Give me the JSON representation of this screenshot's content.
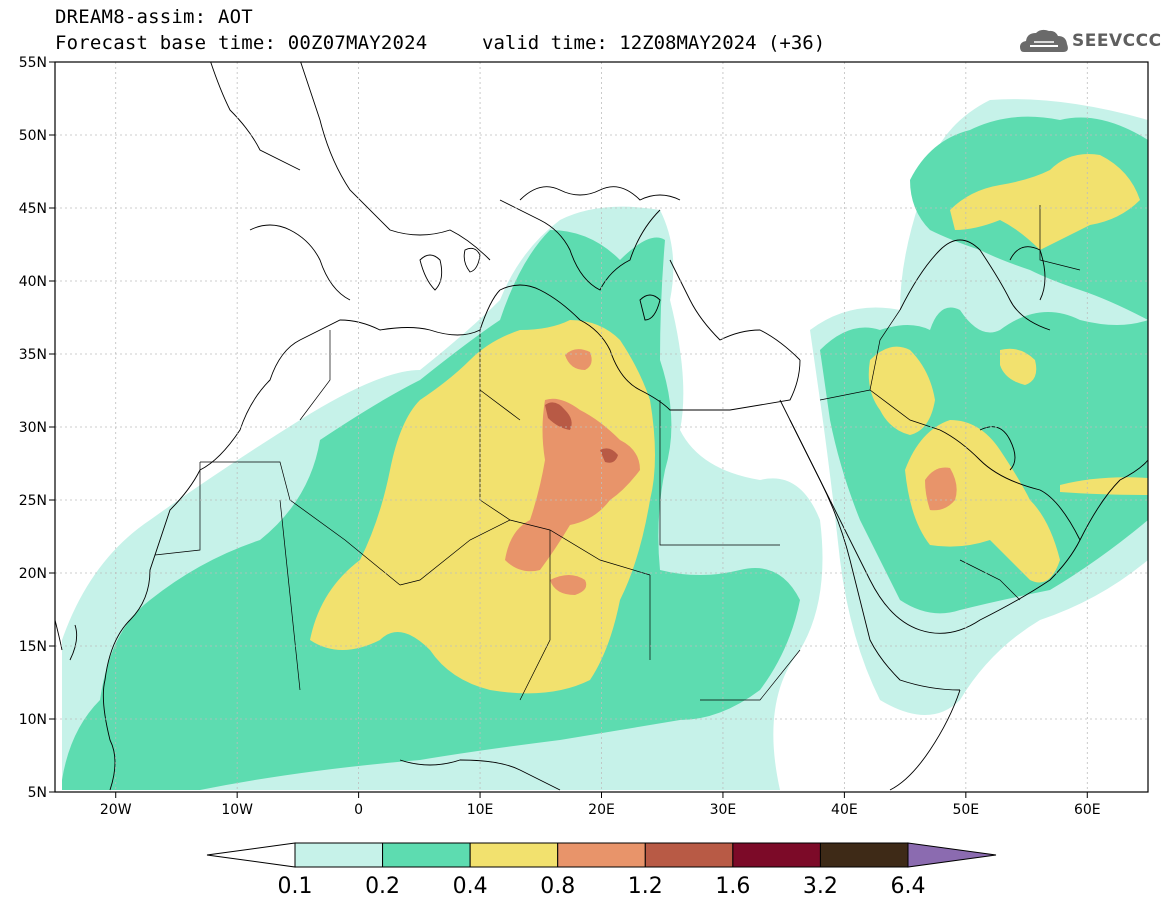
{
  "header": {
    "line1": "DREAM8-assim: AOT",
    "line2": "Forecast base time: 00Z07MAY2024",
    "valid": "valid time: 12Z08MAY2024 (+36)",
    "logo_text": "SEEVCCC"
  },
  "map": {
    "lon_range": [
      -25,
      65
    ],
    "lat_range": [
      5,
      55
    ],
    "lat_ticks": [
      {
        "v": 55,
        "label": "55N"
      },
      {
        "v": 50,
        "label": "50N"
      },
      {
        "v": 45,
        "label": "45N"
      },
      {
        "v": 40,
        "label": "40N"
      },
      {
        "v": 35,
        "label": "35N"
      },
      {
        "v": 30,
        "label": "30N"
      },
      {
        "v": 25,
        "label": "25N"
      },
      {
        "v": 20,
        "label": "20N"
      },
      {
        "v": 15,
        "label": "15N"
      },
      {
        "v": 10,
        "label": "10N"
      },
      {
        "v": 5,
        "label": "5N"
      }
    ],
    "lon_ticks": [
      {
        "v": -20,
        "label": "20W"
      },
      {
        "v": -10,
        "label": "10W"
      },
      {
        "v": 0,
        "label": "0"
      },
      {
        "v": 10,
        "label": "10E"
      },
      {
        "v": 20,
        "label": "20E"
      },
      {
        "v": 30,
        "label": "30E"
      },
      {
        "v": 40,
        "label": "40E"
      },
      {
        "v": 50,
        "label": "50E"
      },
      {
        "v": 60,
        "label": "60E"
      }
    ]
  },
  "colorbar": {
    "levels": [
      "0.1",
      "0.2",
      "0.4",
      "0.8",
      "1.2",
      "1.6",
      "3.2",
      "6.4"
    ],
    "colors": {
      "below": "#ffffff",
      "c1": "#c6f2e9",
      "c2": "#5ddcb0",
      "c3": "#f2e16e",
      "c4": "#e8946a",
      "c5": "#b85a45",
      "c6": "#7c0a28",
      "c7": "#3e2a17",
      "above": "#8b6bb0"
    }
  }
}
